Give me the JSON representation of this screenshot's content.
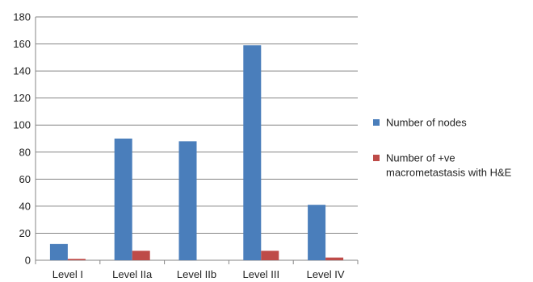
{
  "chart_data": {
    "type": "bar",
    "title": "",
    "xlabel": "",
    "ylabel": "",
    "categories": [
      "Level I",
      "Level IIa",
      "Level IIb",
      "Level III",
      "Level IV"
    ],
    "series": [
      {
        "name": "Number of nodes",
        "name_lines": [
          "Number of nodes"
        ],
        "color": "#4a7ebb",
        "values": [
          12,
          90,
          88,
          159,
          41
        ]
      },
      {
        "name": "Number of +ve macrometastasis with H&E",
        "name_lines": [
          "Number of +ve",
          "macrometastasis with H&E"
        ],
        "color": "#be4b48",
        "values": [
          1,
          7,
          0,
          7,
          2
        ]
      }
    ],
    "ylim": [
      0,
      180
    ],
    "yticks": [
      0,
      20,
      40,
      60,
      80,
      100,
      120,
      140,
      160,
      180
    ],
    "grid": true,
    "legend": "right"
  }
}
